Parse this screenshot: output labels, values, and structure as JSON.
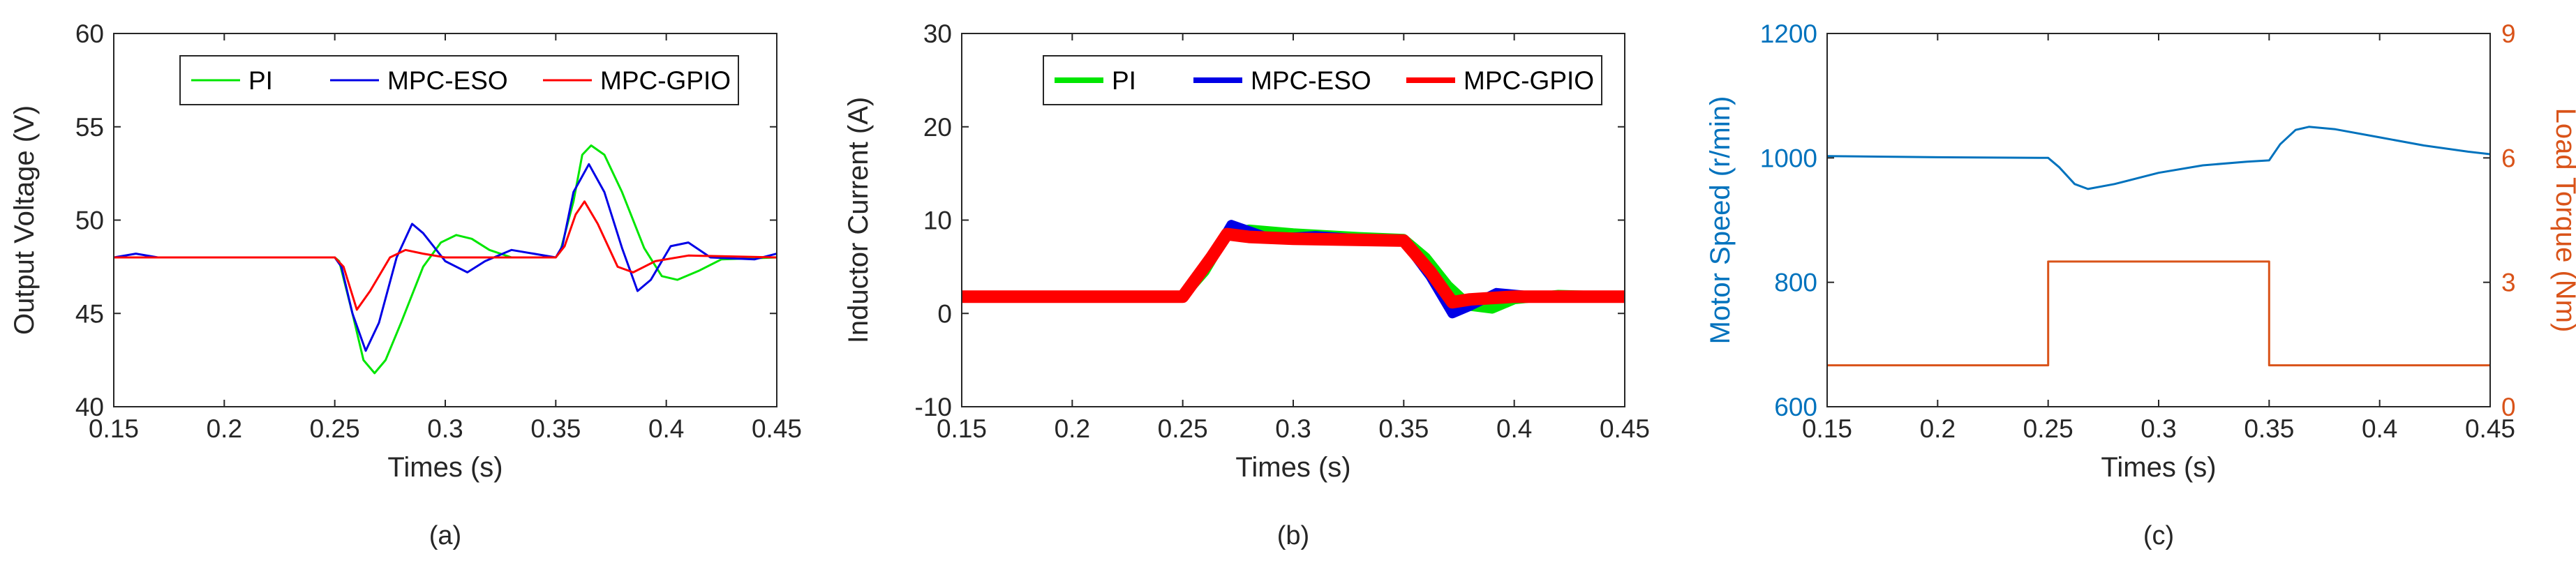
{
  "chart_data": [
    {
      "type": "line",
      "caption": "(a)",
      "xlabel": "Times (s)",
      "ylabel": "Output Voltage (V)",
      "xlim": [
        0.15,
        0.45
      ],
      "ylim": [
        40,
        60
      ],
      "xticks": [
        "0.15",
        "0.2",
        "0.25",
        "0.3",
        "0.35",
        "0.4",
        "0.45"
      ],
      "yticks": [
        "40",
        "45",
        "50",
        "55",
        "60"
      ],
      "legend": {
        "position": "top-right",
        "entries": [
          "PI",
          "MPC-ESO",
          "MPC-GPIO"
        ]
      },
      "series": [
        {
          "name": "PI",
          "color": "#00e600",
          "points": [
            [
              0.15,
              48
            ],
            [
              0.2,
              48
            ],
            [
              0.25,
              48
            ],
            [
              0.252,
              47.8
            ],
            [
              0.258,
              45
            ],
            [
              0.263,
              42.5
            ],
            [
              0.268,
              41.8
            ],
            [
              0.273,
              42.5
            ],
            [
              0.28,
              44.5
            ],
            [
              0.29,
              47.5
            ],
            [
              0.298,
              48.8
            ],
            [
              0.305,
              49.2
            ],
            [
              0.312,
              49.0
            ],
            [
              0.32,
              48.4
            ],
            [
              0.33,
              48.0
            ],
            [
              0.35,
              48
            ],
            [
              0.352,
              48.3
            ],
            [
              0.358,
              51
            ],
            [
              0.362,
              53.5
            ],
            [
              0.366,
              54.0
            ],
            [
              0.372,
              53.5
            ],
            [
              0.38,
              51.5
            ],
            [
              0.39,
              48.5
            ],
            [
              0.398,
              47.0
            ],
            [
              0.405,
              46.8
            ],
            [
              0.415,
              47.3
            ],
            [
              0.425,
              47.9
            ],
            [
              0.45,
              48
            ]
          ]
        },
        {
          "name": "MPC-ESO",
          "color": "#0000e6",
          "points": [
            [
              0.15,
              48
            ],
            [
              0.16,
              48.2
            ],
            [
              0.17,
              48
            ],
            [
              0.25,
              48
            ],
            [
              0.253,
              47.5
            ],
            [
              0.258,
              45
            ],
            [
              0.264,
              43.0
            ],
            [
              0.27,
              44.5
            ],
            [
              0.278,
              48.0
            ],
            [
              0.285,
              49.8
            ],
            [
              0.29,
              49.3
            ],
            [
              0.3,
              47.8
            ],
            [
              0.31,
              47.2
            ],
            [
              0.318,
              47.8
            ],
            [
              0.33,
              48.4
            ],
            [
              0.35,
              48
            ],
            [
              0.353,
              48.6
            ],
            [
              0.358,
              51.5
            ],
            [
              0.365,
              53.0
            ],
            [
              0.372,
              51.5
            ],
            [
              0.38,
              48.5
            ],
            [
              0.387,
              46.2
            ],
            [
              0.393,
              46.8
            ],
            [
              0.402,
              48.6
            ],
            [
              0.41,
              48.8
            ],
            [
              0.42,
              48.0
            ],
            [
              0.44,
              47.9
            ],
            [
              0.45,
              48.2
            ]
          ]
        },
        {
          "name": "MPC-GPIO",
          "color": "#ff0000",
          "points": [
            [
              0.15,
              48
            ],
            [
              0.25,
              48
            ],
            [
              0.254,
              47.5
            ],
            [
              0.26,
              45.2
            ],
            [
              0.266,
              46.2
            ],
            [
              0.275,
              48.0
            ],
            [
              0.282,
              48.4
            ],
            [
              0.29,
              48.2
            ],
            [
              0.3,
              48
            ],
            [
              0.35,
              48
            ],
            [
              0.354,
              48.6
            ],
            [
              0.359,
              50.3
            ],
            [
              0.363,
              51.0
            ],
            [
              0.369,
              49.8
            ],
            [
              0.378,
              47.5
            ],
            [
              0.385,
              47.2
            ],
            [
              0.395,
              47.8
            ],
            [
              0.41,
              48.1
            ],
            [
              0.45,
              48
            ]
          ]
        }
      ]
    },
    {
      "type": "line",
      "caption": "(b)",
      "xlabel": "Times (s)",
      "ylabel": "Inductor Current (A)",
      "xlim": [
        0.15,
        0.45
      ],
      "ylim": [
        -10,
        30
      ],
      "xticks": [
        "0.15",
        "0.2",
        "0.25",
        "0.3",
        "0.35",
        "0.4",
        "0.45"
      ],
      "yticks": [
        "-10",
        "0",
        "10",
        "20",
        "30"
      ],
      "legend": {
        "position": "top-right",
        "entries": [
          "PI",
          "MPC-ESO",
          "MPC-GPIO"
        ]
      },
      "series": [
        {
          "name": "PI",
          "color": "#00e600",
          "points": [
            [
              0.15,
              1.8
            ],
            [
              0.25,
              1.8
            ],
            [
              0.26,
              4.5
            ],
            [
              0.27,
              8.5
            ],
            [
              0.28,
              9.0
            ],
            [
              0.3,
              8.6
            ],
            [
              0.33,
              8.2
            ],
            [
              0.35,
              8.0
            ],
            [
              0.36,
              6.0
            ],
            [
              0.37,
              3.0
            ],
            [
              0.38,
              0.8
            ],
            [
              0.39,
              0.5
            ],
            [
              0.4,
              1.5
            ],
            [
              0.42,
              2.0
            ],
            [
              0.45,
              1.8
            ]
          ]
        },
        {
          "name": "MPC-ESO",
          "color": "#0000e6",
          "points": [
            [
              0.15,
              1.8
            ],
            [
              0.25,
              1.8
            ],
            [
              0.262,
              5.5
            ],
            [
              0.272,
              9.5
            ],
            [
              0.278,
              9.0
            ],
            [
              0.29,
              8.0
            ],
            [
              0.31,
              8.3
            ],
            [
              0.34,
              7.8
            ],
            [
              0.35,
              7.8
            ],
            [
              0.362,
              4.0
            ],
            [
              0.372,
              0.0
            ],
            [
              0.38,
              0.8
            ],
            [
              0.392,
              2.2
            ],
            [
              0.41,
              1.8
            ],
            [
              0.45,
              1.8
            ]
          ]
        },
        {
          "name": "MPC-GPIO",
          "color": "#ff0000",
          "points": [
            [
              0.15,
              1.8
            ],
            [
              0.25,
              1.8
            ],
            [
              0.263,
              6.0
            ],
            [
              0.27,
              8.5
            ],
            [
              0.28,
              8.2
            ],
            [
              0.3,
              8.0
            ],
            [
              0.35,
              7.8
            ],
            [
              0.362,
              4.5
            ],
            [
              0.372,
              1.2
            ],
            [
              0.38,
              1.5
            ],
            [
              0.4,
              1.8
            ],
            [
              0.45,
              1.8
            ]
          ]
        }
      ]
    },
    {
      "type": "line",
      "caption": "(c)",
      "xlabel": "Times (s)",
      "ylabel": "Motor Speed (r/min)",
      "ylabel_right": "Load Torque (Nm)",
      "xlim": [
        0.15,
        0.45
      ],
      "ylim": [
        600,
        1200
      ],
      "ylim_right": [
        0,
        9
      ],
      "xticks": [
        "0.15",
        "0.2",
        "0.25",
        "0.3",
        "0.35",
        "0.4",
        "0.45"
      ],
      "yticks": [
        "600",
        "800",
        "1000",
        "1200"
      ],
      "yticks_right": [
        "0",
        "3",
        "6",
        "9"
      ],
      "colors": {
        "left": "#0072bd",
        "right": "#d95319"
      },
      "series": [
        {
          "name": "Motor Speed",
          "axis": "left",
          "color": "#0072bd",
          "points": [
            [
              0.15,
              1003
            ],
            [
              0.2,
              1001
            ],
            [
              0.25,
              1000
            ],
            [
              0.255,
              985
            ],
            [
              0.262,
              958
            ],
            [
              0.268,
              950
            ],
            [
              0.28,
              958
            ],
            [
              0.3,
              976
            ],
            [
              0.32,
              988
            ],
            [
              0.34,
              994
            ],
            [
              0.35,
              996
            ],
            [
              0.355,
              1022
            ],
            [
              0.362,
              1045
            ],
            [
              0.368,
              1050
            ],
            [
              0.38,
              1046
            ],
            [
              0.4,
              1033
            ],
            [
              0.42,
              1020
            ],
            [
              0.44,
              1010
            ],
            [
              0.45,
              1006
            ]
          ]
        },
        {
          "name": "Load Torque",
          "axis": "right",
          "color": "#d95319",
          "points": [
            [
              0.15,
              1
            ],
            [
              0.25,
              1
            ],
            [
              0.25,
              3.5
            ],
            [
              0.35,
              3.5
            ],
            [
              0.35,
              1
            ],
            [
              0.45,
              1
            ]
          ]
        }
      ]
    }
  ]
}
